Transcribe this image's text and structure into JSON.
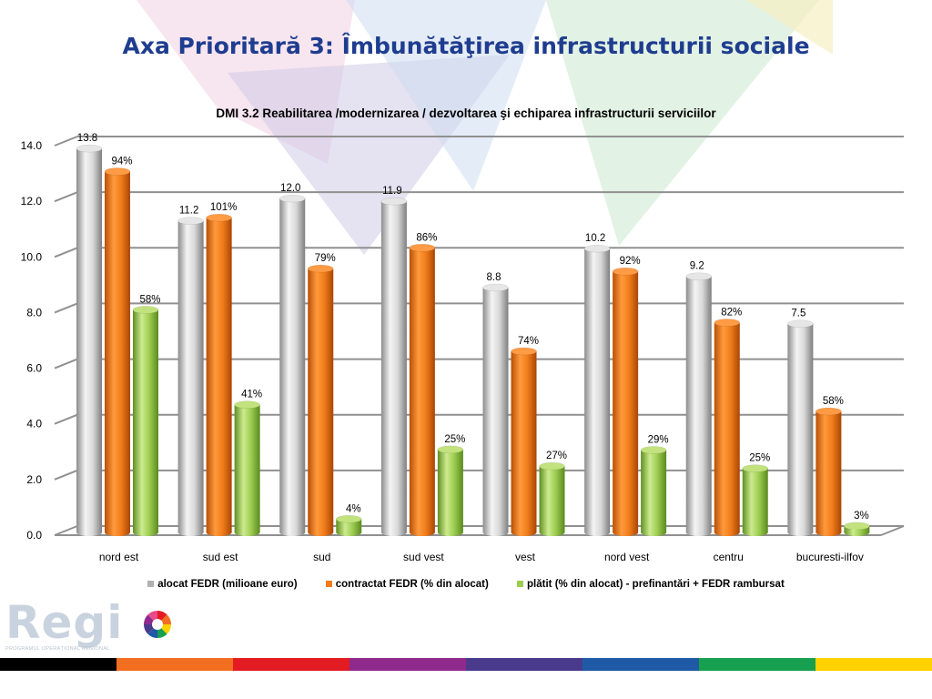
{
  "page": {
    "title": "Axa Prioritară 3: Îmbunătăţirea infrastructurii sociale"
  },
  "chart_data": {
    "type": "bar",
    "title": "DMI 3.2 Reabilitarea /modernizarea / dezvoltarea şi echiparea infrastructurii serviciilor",
    "categories": [
      "nord est",
      "sud est",
      "sud",
      "sud vest",
      "vest",
      "nord vest",
      "centru",
      "bucuresti-ilfov"
    ],
    "series": [
      {
        "name": "alocat FEDR (milioane euro)",
        "color": "#c8c8c8",
        "values": [
          13.8,
          11.2,
          12.0,
          11.9,
          8.8,
          10.2,
          9.2,
          7.5
        ],
        "labels": [
          "13.8",
          "11.2",
          "12.0",
          "11.9",
          "8.8",
          "10.2",
          "9.2",
          "7.5"
        ]
      },
      {
        "name": "contractat FEDR (% din alocat)",
        "color": "#f07c1a",
        "values": [
          12.97,
          11.31,
          9.48,
          10.23,
          6.51,
          9.38,
          7.54,
          4.35
        ],
        "labels": [
          "94%",
          "101%",
          "79%",
          "86%",
          "74%",
          "92%",
          "82%",
          "58%"
        ]
      },
      {
        "name": "plătit (% din alocat) - prefinantări + FEDR rambursat",
        "color": "#9ccc50",
        "values": [
          8.0,
          4.59,
          0.48,
          2.98,
          2.38,
          2.96,
          2.3,
          0.23
        ],
        "labels": [
          "58%",
          "41%",
          "4%",
          "25%",
          "27%",
          "29%",
          "25%",
          "3%"
        ]
      }
    ],
    "yticks": [
      "0.0",
      "2.0",
      "4.0",
      "6.0",
      "8.0",
      "10.0",
      "12.0",
      "14.0"
    ],
    "ylim": [
      0,
      14
    ],
    "grid": true,
    "legend": "bottom"
  },
  "logo": {
    "word": "Regi",
    "subtitle": "PROGRAMUL OPERAȚIONAL REGIONAL"
  },
  "colors": {
    "strip": [
      "#000000",
      "#f26e21",
      "#e31b23",
      "#8f2a8c",
      "#4a3a8c",
      "#1f5aa6",
      "#17a050",
      "#ffd200"
    ]
  }
}
